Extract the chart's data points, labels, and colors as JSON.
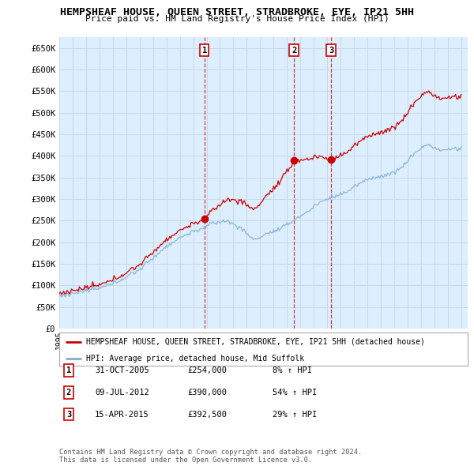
{
  "title": "HEMPSHEAF HOUSE, QUEEN STREET, STRADBROKE, EYE, IP21 5HH",
  "subtitle": "Price paid vs. HM Land Registry's House Price Index (HPI)",
  "ylabel_ticks": [
    "£0",
    "£50K",
    "£100K",
    "£150K",
    "£200K",
    "£250K",
    "£300K",
    "£350K",
    "£400K",
    "£450K",
    "£500K",
    "£550K",
    "£600K",
    "£650K"
  ],
  "ylim": [
    0,
    675000
  ],
  "yticks": [
    0,
    50000,
    100000,
    150000,
    200000,
    250000,
    300000,
    350000,
    400000,
    450000,
    500000,
    550000,
    600000,
    650000
  ],
  "line_color_red": "#cc0000",
  "line_color_blue": "#7ab0d4",
  "grid_color": "#c8d8e8",
  "bg_color": "#ddeeff",
  "marker_dates": [
    2005.833,
    2012.52,
    2015.29
  ],
  "marker_values": [
    254000,
    390000,
    392500
  ],
  "marker_labels": [
    "1",
    "2",
    "3"
  ],
  "transactions": [
    {
      "label": "1",
      "date": "31-OCT-2005",
      "price": "£254,000",
      "hpi": "8% ↑ HPI"
    },
    {
      "label": "2",
      "date": "09-JUL-2012",
      "price": "£390,000",
      "hpi": "54% ↑ HPI"
    },
    {
      "label": "3",
      "date": "15-APR-2015",
      "price": "£392,500",
      "hpi": "29% ↑ HPI"
    }
  ],
  "legend_red": "HEMPSHEAF HOUSE, QUEEN STREET, STRADBROKE, EYE, IP21 5HH (detached house)",
  "legend_blue": "HPI: Average price, detached house, Mid Suffolk",
  "footer": "Contains HM Land Registry data © Crown copyright and database right 2024.\nThis data is licensed under the Open Government Licence v3.0.",
  "xmin": 1995.0,
  "xmax": 2025.5,
  "fig_width": 6.0,
  "fig_height": 5.9
}
